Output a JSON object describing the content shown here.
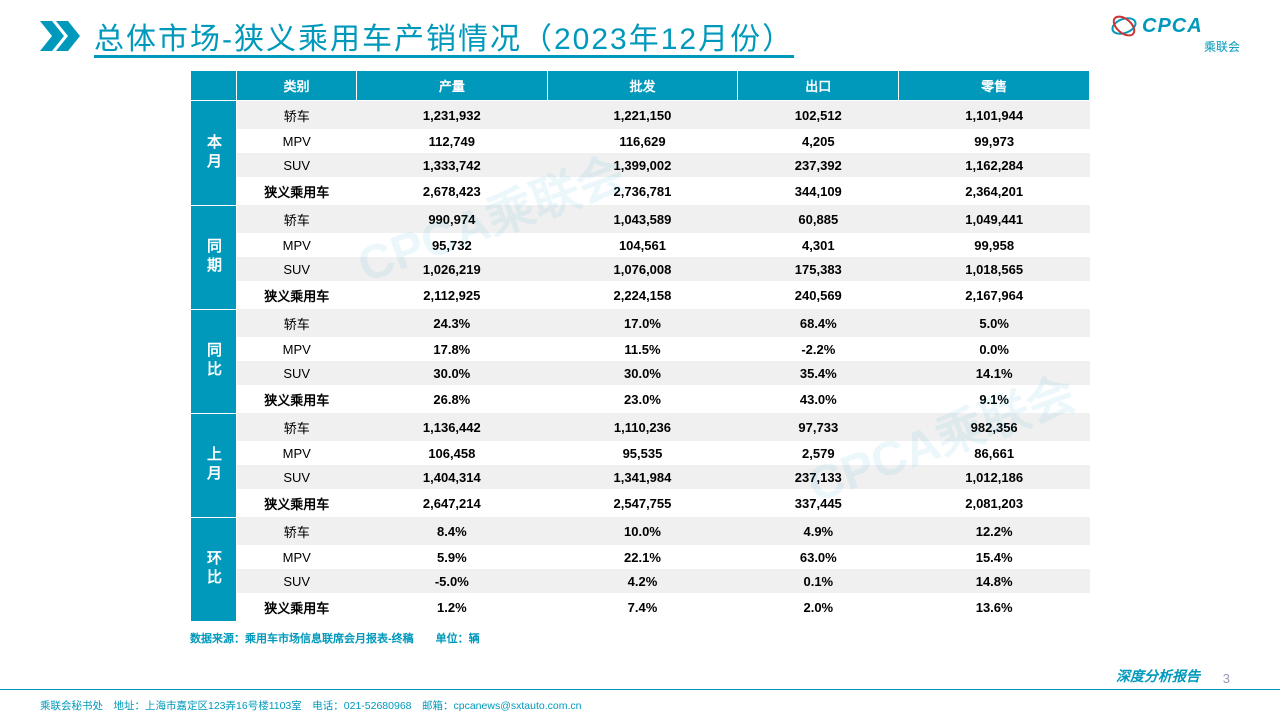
{
  "title": "总体市场-狭义乘用车产销情况（2023年12月份）",
  "logo": {
    "main": "CPCA",
    "sub": "乘联会"
  },
  "watermark": "CPCA乘联会",
  "columns": [
    "类别",
    "产量",
    "批发",
    "出口",
    "零售"
  ],
  "groups": [
    {
      "label": "本月",
      "rows": [
        {
          "cat": "轿车",
          "vals": [
            "1,231,932",
            "1,221,150",
            "102,512",
            "1,101,944"
          ]
        },
        {
          "cat": "MPV",
          "vals": [
            "112,749",
            "116,629",
            "4,205",
            "99,973"
          ]
        },
        {
          "cat": "SUV",
          "vals": [
            "1,333,742",
            "1,399,002",
            "237,392",
            "1,162,284"
          ]
        },
        {
          "cat": "狭义乘用车",
          "vals": [
            "2,678,423",
            "2,736,781",
            "344,109",
            "2,364,201"
          ]
        }
      ]
    },
    {
      "label": "同期",
      "rows": [
        {
          "cat": "轿车",
          "vals": [
            "990,974",
            "1,043,589",
            "60,885",
            "1,049,441"
          ]
        },
        {
          "cat": "MPV",
          "vals": [
            "95,732",
            "104,561",
            "4,301",
            "99,958"
          ]
        },
        {
          "cat": "SUV",
          "vals": [
            "1,026,219",
            "1,076,008",
            "175,383",
            "1,018,565"
          ]
        },
        {
          "cat": "狭义乘用车",
          "vals": [
            "2,112,925",
            "2,224,158",
            "240,569",
            "2,167,964"
          ]
        }
      ]
    },
    {
      "label": "同比",
      "rows": [
        {
          "cat": "轿车",
          "vals": [
            "24.3%",
            "17.0%",
            "68.4%",
            "5.0%"
          ]
        },
        {
          "cat": "MPV",
          "vals": [
            "17.8%",
            "11.5%",
            "-2.2%",
            "0.0%"
          ]
        },
        {
          "cat": "SUV",
          "vals": [
            "30.0%",
            "30.0%",
            "35.4%",
            "14.1%"
          ]
        },
        {
          "cat": "狭义乘用车",
          "vals": [
            "26.8%",
            "23.0%",
            "43.0%",
            "9.1%"
          ]
        }
      ]
    },
    {
      "label": "上月",
      "rows": [
        {
          "cat": "轿车",
          "vals": [
            "1,136,442",
            "1,110,236",
            "97,733",
            "982,356"
          ]
        },
        {
          "cat": "MPV",
          "vals": [
            "106,458",
            "95,535",
            "2,579",
            "86,661"
          ]
        },
        {
          "cat": "SUV",
          "vals": [
            "1,404,314",
            "1,341,984",
            "237,133",
            "1,012,186"
          ]
        },
        {
          "cat": "狭义乘用车",
          "vals": [
            "2,647,214",
            "2,547,755",
            "337,445",
            "2,081,203"
          ]
        }
      ]
    },
    {
      "label": "环比",
      "rows": [
        {
          "cat": "轿车",
          "vals": [
            "8.4%",
            "10.0%",
            "4.9%",
            "12.2%"
          ]
        },
        {
          "cat": "MPV",
          "vals": [
            "5.9%",
            "22.1%",
            "63.0%",
            "15.4%"
          ]
        },
        {
          "cat": "SUV",
          "vals": [
            "-5.0%",
            "4.2%",
            "0.1%",
            "14.8%"
          ]
        },
        {
          "cat": "狭义乘用车",
          "vals": [
            "1.2%",
            "7.4%",
            "2.0%",
            "13.6%"
          ]
        }
      ]
    }
  ],
  "source": "数据来源：乘用车市场信息联席会月报表-终稿　　单位：辆",
  "footer": {
    "left": "乘联会秘书处　地址：上海市嘉定区123弄16号楼1103室　电话：021-52680968　邮箱：cpcanews@sxtauto.com.cn",
    "right": "深度分析报告"
  },
  "page": "3",
  "colors": {
    "accent": "#0099bb",
    "row_alt": "#f0f0f0",
    "row_base": "#ffffff",
    "text_header": "#ffffff"
  }
}
